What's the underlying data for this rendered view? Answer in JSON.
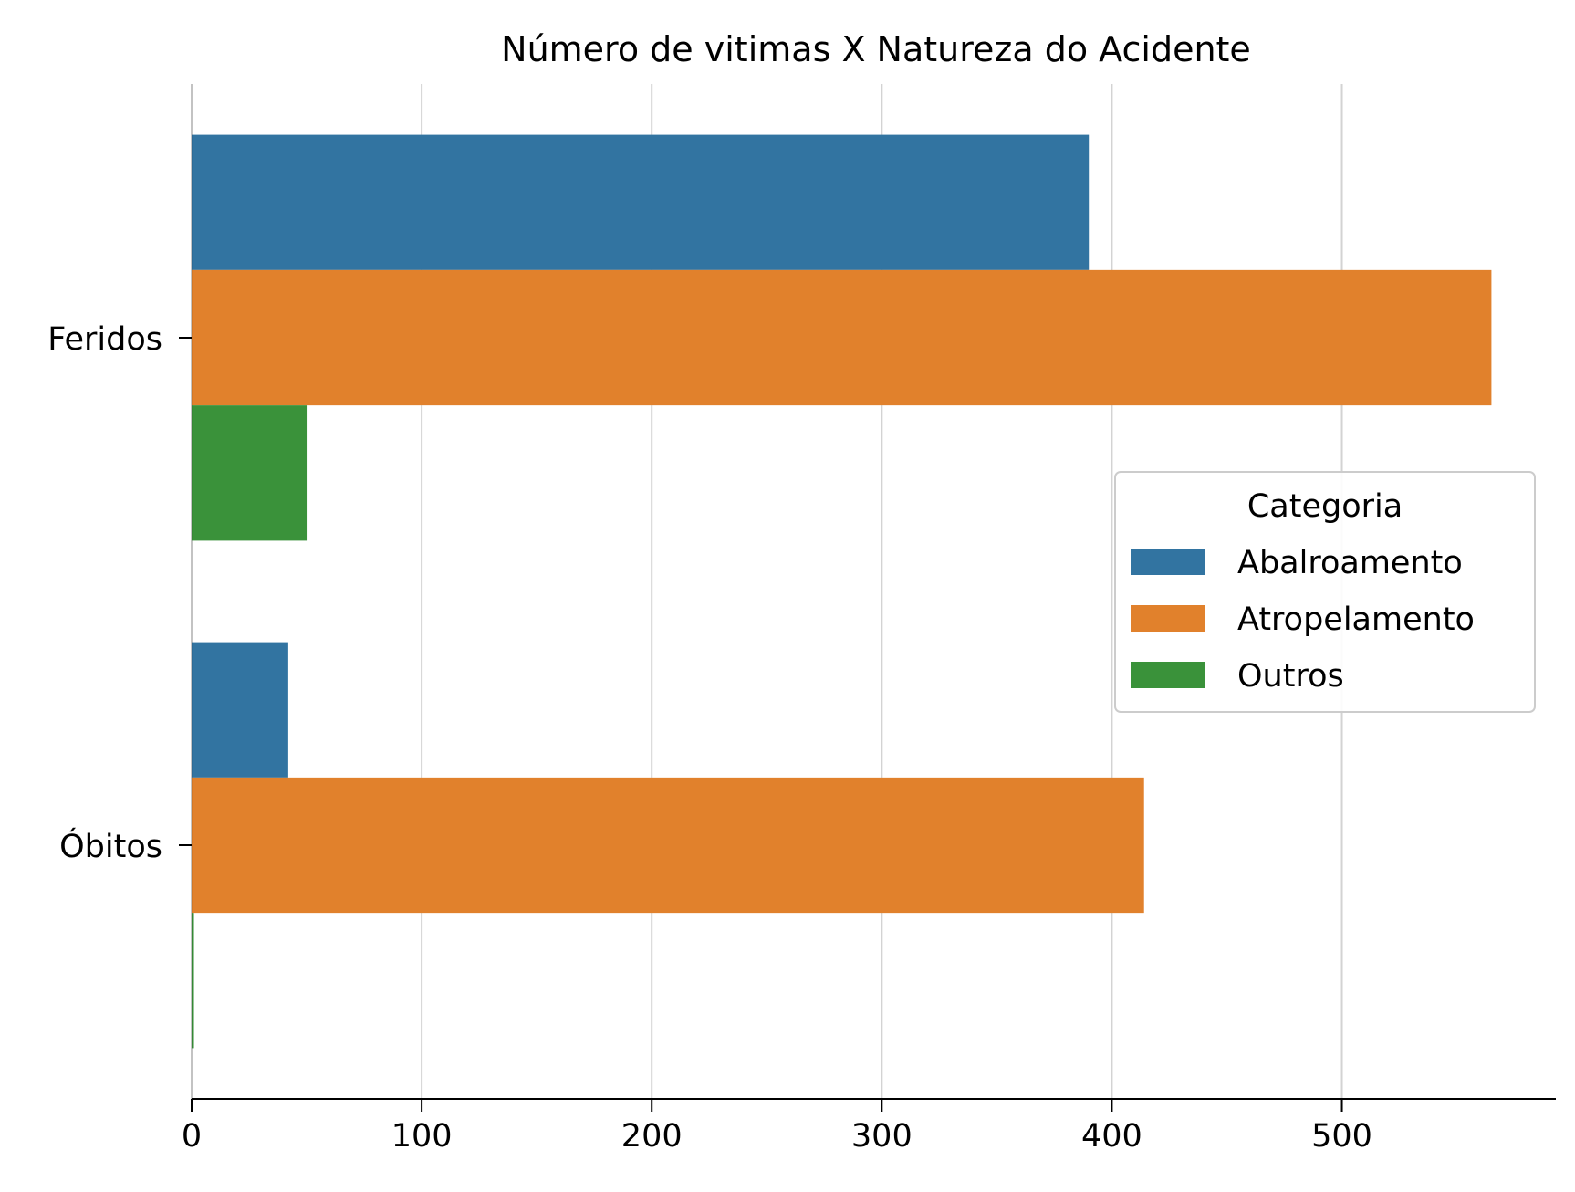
{
  "chart_data": {
    "type": "bar",
    "orientation": "horizontal",
    "title": "Número de vitimas X Natureza do Acidente",
    "xlabel": "",
    "ylabel": "",
    "categories": [
      "Feridos",
      "Óbitos"
    ],
    "series": [
      {
        "name": "Abalroamento",
        "values": [
          390,
          42
        ],
        "color": "#3274a1"
      },
      {
        "name": "Atropelamento",
        "values": [
          565,
          414
        ],
        "color": "#e1812c"
      },
      {
        "name": "Outros",
        "values": [
          50,
          1
        ],
        "color": "#3a923a"
      }
    ],
    "xlim": [
      0,
      593
    ],
    "xticks": [
      0,
      100,
      200,
      300,
      400,
      500
    ],
    "grid": "x",
    "legend": {
      "title": "Categoria",
      "position": "right"
    }
  }
}
